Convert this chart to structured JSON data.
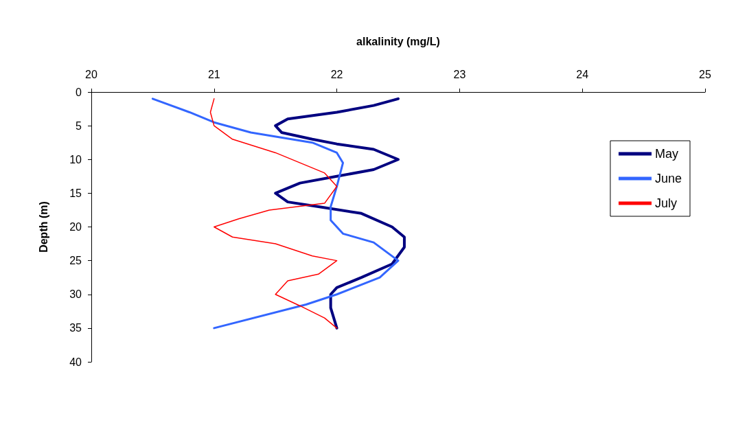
{
  "chart_data": {
    "type": "line",
    "xlabel": "alkalinity (mg/L)",
    "ylabel": "Depth (m)",
    "xlim": [
      20,
      25
    ],
    "xticks": [
      20,
      21,
      22,
      23,
      24,
      25
    ],
    "ylim": [
      40,
      0
    ],
    "yticks": [
      0,
      5,
      10,
      15,
      20,
      25,
      30,
      35,
      40
    ],
    "grid": false,
    "legend": "right",
    "marker": "none",
    "line_style": "solid",
    "series": [
      {
        "name": "May",
        "color": "#000080",
        "x": [
          22.5,
          22.3,
          22.0,
          21.6,
          21.5,
          21.55,
          21.8,
          22.0,
          22.3,
          22.5,
          22.3,
          22.0,
          21.7,
          21.5,
          21.6,
          21.85,
          22.2,
          22.45,
          22.55,
          22.55,
          22.45,
          22.2,
          22.0,
          21.95,
          21.95,
          22.0
        ],
        "values": [
          1,
          2,
          3,
          4,
          5,
          6,
          7,
          7.7,
          8.5,
          10,
          11.5,
          12.5,
          13.5,
          15,
          16.3,
          17,
          18,
          20,
          21.5,
          23,
          25.5,
          27.5,
          29,
          30,
          32,
          35
        ]
      },
      {
        "name": "June",
        "color": "#3366ff",
        "x": [
          20.5,
          20.8,
          21.0,
          21.3,
          21.8,
          22.0,
          22.05,
          22.0,
          21.95,
          21.95,
          22.05,
          22.3,
          22.5,
          22.35,
          22.0,
          21.75,
          21.0
        ],
        "values": [
          1,
          3,
          4.5,
          6,
          7.5,
          9,
          10.5,
          14,
          17,
          19,
          21,
          22.3,
          25,
          27.5,
          30,
          31.5,
          35
        ]
      },
      {
        "name": "July",
        "color": "#ff0000",
        "x": [
          21.0,
          20.97,
          21.0,
          21.15,
          21.5,
          21.7,
          21.9,
          22.0,
          21.9,
          21.45,
          21.2,
          21.0,
          21.15,
          21.5,
          21.8,
          22.0,
          21.85,
          21.6,
          21.5,
          21.7,
          21.9,
          22.0
        ],
        "values": [
          1,
          3,
          5,
          7,
          9,
          10.5,
          12,
          14,
          16.5,
          17.5,
          18.8,
          20,
          21.5,
          22.5,
          24.3,
          25,
          27,
          28,
          30,
          31.7,
          33.5,
          35
        ]
      }
    ]
  }
}
